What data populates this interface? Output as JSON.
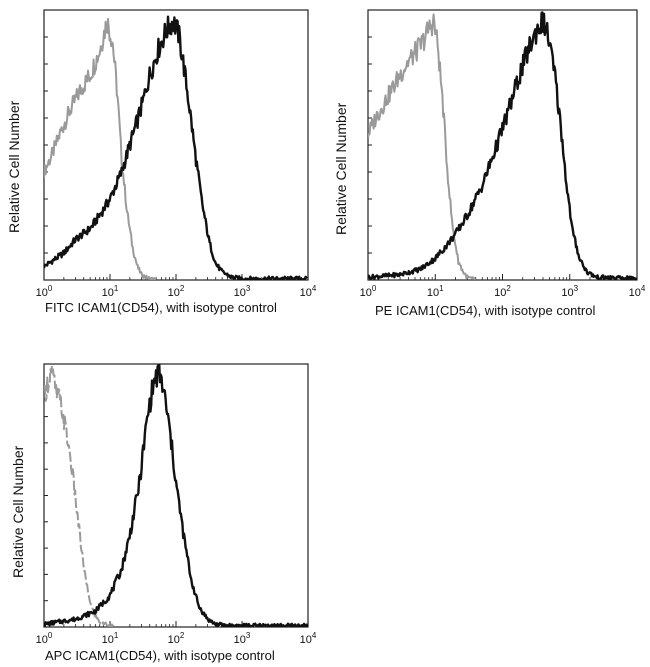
{
  "chart_data": [
    {
      "type": "area",
      "title": "",
      "xlabel": "FITC  ICAM1(CD54),  with isotype control",
      "ylabel": "Relative Cell Number",
      "xscale": "log",
      "xlim": [
        1,
        10000
      ],
      "ylim": [
        0,
        100
      ],
      "xtick_labels": [
        {
          "base": "10",
          "exp": "0"
        },
        {
          "base": "10",
          "exp": "1"
        },
        {
          "base": "10",
          "exp": "2"
        },
        {
          "base": "10",
          "exp": "3"
        },
        {
          "base": "10",
          "exp": "4"
        }
      ],
      "series": [
        {
          "name": "isotype control",
          "color": "#9a9a9a",
          "x": [
            1.0,
            1.3,
            1.8,
            2.5,
            3.5,
            5,
            7,
            9,
            11,
            13,
            15,
            18,
            22,
            26,
            30,
            35,
            40,
            50
          ],
          "y": [
            40,
            46,
            55,
            63,
            70,
            76,
            85,
            96,
            88,
            68,
            45,
            26,
            12,
            5,
            2,
            1,
            0.5,
            0
          ]
        },
        {
          "name": "ICAM1(CD54)",
          "color": "#111111",
          "x": [
            1.0,
            2,
            3,
            5,
            7,
            10,
            15,
            20,
            30,
            40,
            55,
            70,
            90,
            110,
            130,
            160,
            200,
            250,
            320,
            400,
            500,
            700,
            1000,
            10000
          ],
          "y": [
            5,
            10,
            15,
            19,
            24,
            30,
            40,
            50,
            64,
            76,
            86,
            92,
            96,
            91,
            80,
            64,
            45,
            28,
            14,
            6,
            3,
            1,
            0.5,
            0.5
          ]
        }
      ]
    },
    {
      "type": "area",
      "title": "",
      "xlabel": "PE  ICAM1(CD54),  with isotype control",
      "ylabel": "Relative Cell Number",
      "xscale": "log",
      "xlim": [
        1,
        10000
      ],
      "ylim": [
        0,
        100
      ],
      "xtick_labels": [
        {
          "base": "10",
          "exp": "0"
        },
        {
          "base": "10",
          "exp": "1"
        },
        {
          "base": "10",
          "exp": "2"
        },
        {
          "base": "10",
          "exp": "3"
        },
        {
          "base": "10",
          "exp": "4"
        }
      ],
      "series": [
        {
          "name": "isotype control",
          "color": "#9a9a9a",
          "x": [
            1.0,
            1.3,
            1.7,
            2.2,
            3,
            4,
            5,
            6.5,
            8,
            9.5,
            11,
            13,
            15,
            18,
            22,
            26,
            30,
            40
          ],
          "y": [
            54,
            60,
            65,
            70,
            76,
            81,
            84,
            88,
            93,
            96,
            86,
            65,
            42,
            20,
            7,
            3,
            1,
            0
          ]
        },
        {
          "name": "ICAM1(CD54)",
          "color": "#111111",
          "x": [
            1.0,
            3,
            6,
            10,
            15,
            20,
            30,
            50,
            80,
            120,
            180,
            250,
            330,
            400,
            480,
            600,
            750,
            900,
            1100,
            1400,
            1800,
            2500,
            10000
          ],
          "y": [
            1,
            2,
            4,
            8,
            13,
            17,
            24,
            35,
            49,
            62,
            76,
            86,
            93,
            96,
            90,
            76,
            55,
            35,
            18,
            8,
            3,
            1,
            0.5
          ]
        }
      ]
    },
    {
      "type": "area",
      "title": "",
      "xlabel": "APC ICAM1(CD54), with isotype control",
      "ylabel": "Relative Cell Number",
      "xscale": "log",
      "xlim": [
        1,
        10000
      ],
      "ylim": [
        0,
        100
      ],
      "xtick_labels": [
        {
          "base": "10",
          "exp": "0"
        },
        {
          "base": "10",
          "exp": "1"
        },
        {
          "base": "10",
          "exp": "2"
        },
        {
          "base": "10",
          "exp": "3"
        },
        {
          "base": "10",
          "exp": "4"
        }
      ],
      "series": [
        {
          "name": "isotype control",
          "color": "#9a9a9a",
          "dashed": true,
          "x": [
            1.0,
            1.15,
            1.3,
            1.5,
            1.8,
            2.1,
            2.5,
            2.9,
            3.3,
            3.8,
            4.4,
            5.2,
            6,
            7,
            9,
            12
          ],
          "y": [
            88,
            93,
            98,
            90,
            85,
            76,
            65,
            52,
            40,
            27,
            16,
            8,
            4,
            2,
            1,
            0
          ]
        },
        {
          "name": "ICAM1(CD54)",
          "color": "#111111",
          "x": [
            1.0,
            3,
            6,
            10,
            15,
            20,
            28,
            36,
            45,
            55,
            65,
            80,
            100,
            130,
            170,
            220,
            300,
            400,
            600,
            10000
          ],
          "y": [
            1,
            3,
            6,
            12,
            22,
            35,
            55,
            78,
            92,
            97,
            90,
            75,
            55,
            35,
            18,
            8,
            3,
            1,
            0.5,
            0.5
          ]
        }
      ]
    }
  ]
}
